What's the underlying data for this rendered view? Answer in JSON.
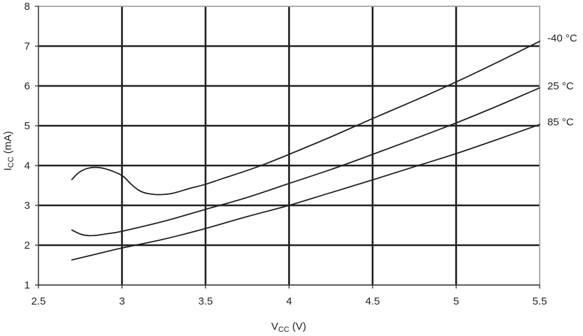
{
  "chart_data": {
    "type": "line",
    "xlabel": {
      "main": "V",
      "sub": "CC",
      "unit": " (V)"
    },
    "ylabel": {
      "main": "I",
      "sub": "CC",
      "unit": " (mA)"
    },
    "xlim": [
      2.5,
      5.5
    ],
    "ylim": [
      1,
      8
    ],
    "x_ticks": [
      2.5,
      3,
      3.5,
      4,
      4.5,
      5,
      5.5
    ],
    "x_tick_labels": [
      "2.5",
      "3",
      "3.5",
      "4",
      "4.5",
      "5",
      "5.5"
    ],
    "y_ticks": [
      1,
      2,
      3,
      4,
      5,
      6,
      7,
      8
    ],
    "y_tick_labels": [
      "1",
      "2",
      "3",
      "4",
      "5",
      "6",
      "7",
      "8"
    ],
    "grid": true,
    "series": [
      {
        "name": "-40 °C",
        "x": [
          2.7,
          2.75,
          2.82,
          2.9,
          3.0,
          3.05,
          3.1,
          3.15,
          3.22,
          3.3,
          3.4,
          3.5,
          3.6,
          3.8,
          4.0,
          4.25,
          4.5,
          4.75,
          5.0,
          5.25,
          5.5
        ],
        "y": [
          3.65,
          3.85,
          3.95,
          3.92,
          3.75,
          3.55,
          3.38,
          3.3,
          3.27,
          3.3,
          3.42,
          3.53,
          3.67,
          3.95,
          4.28,
          4.72,
          5.18,
          5.63,
          6.1,
          6.6,
          7.12
        ]
      },
      {
        "name": "25 °C",
        "x": [
          2.7,
          2.75,
          2.8,
          2.85,
          2.9,
          3.0,
          3.25,
          3.5,
          3.75,
          4.0,
          4.25,
          4.5,
          4.75,
          5.0,
          5.25,
          5.5
        ],
        "y": [
          2.38,
          2.28,
          2.24,
          2.25,
          2.28,
          2.35,
          2.6,
          2.9,
          3.2,
          3.55,
          3.9,
          4.28,
          4.67,
          5.07,
          5.5,
          5.95
        ]
      },
      {
        "name": "85 °C",
        "x": [
          2.7,
          2.85,
          3.0,
          3.25,
          3.5,
          3.75,
          4.0,
          4.25,
          4.5,
          4.75,
          5.0,
          5.25,
          5.5
        ],
        "y": [
          1.63,
          1.78,
          1.93,
          2.15,
          2.42,
          2.72,
          3.0,
          3.32,
          3.64,
          3.97,
          4.3,
          4.66,
          5.03
        ]
      }
    ],
    "series_label_y": [
      7.2,
      6.0,
      5.1
    ]
  }
}
